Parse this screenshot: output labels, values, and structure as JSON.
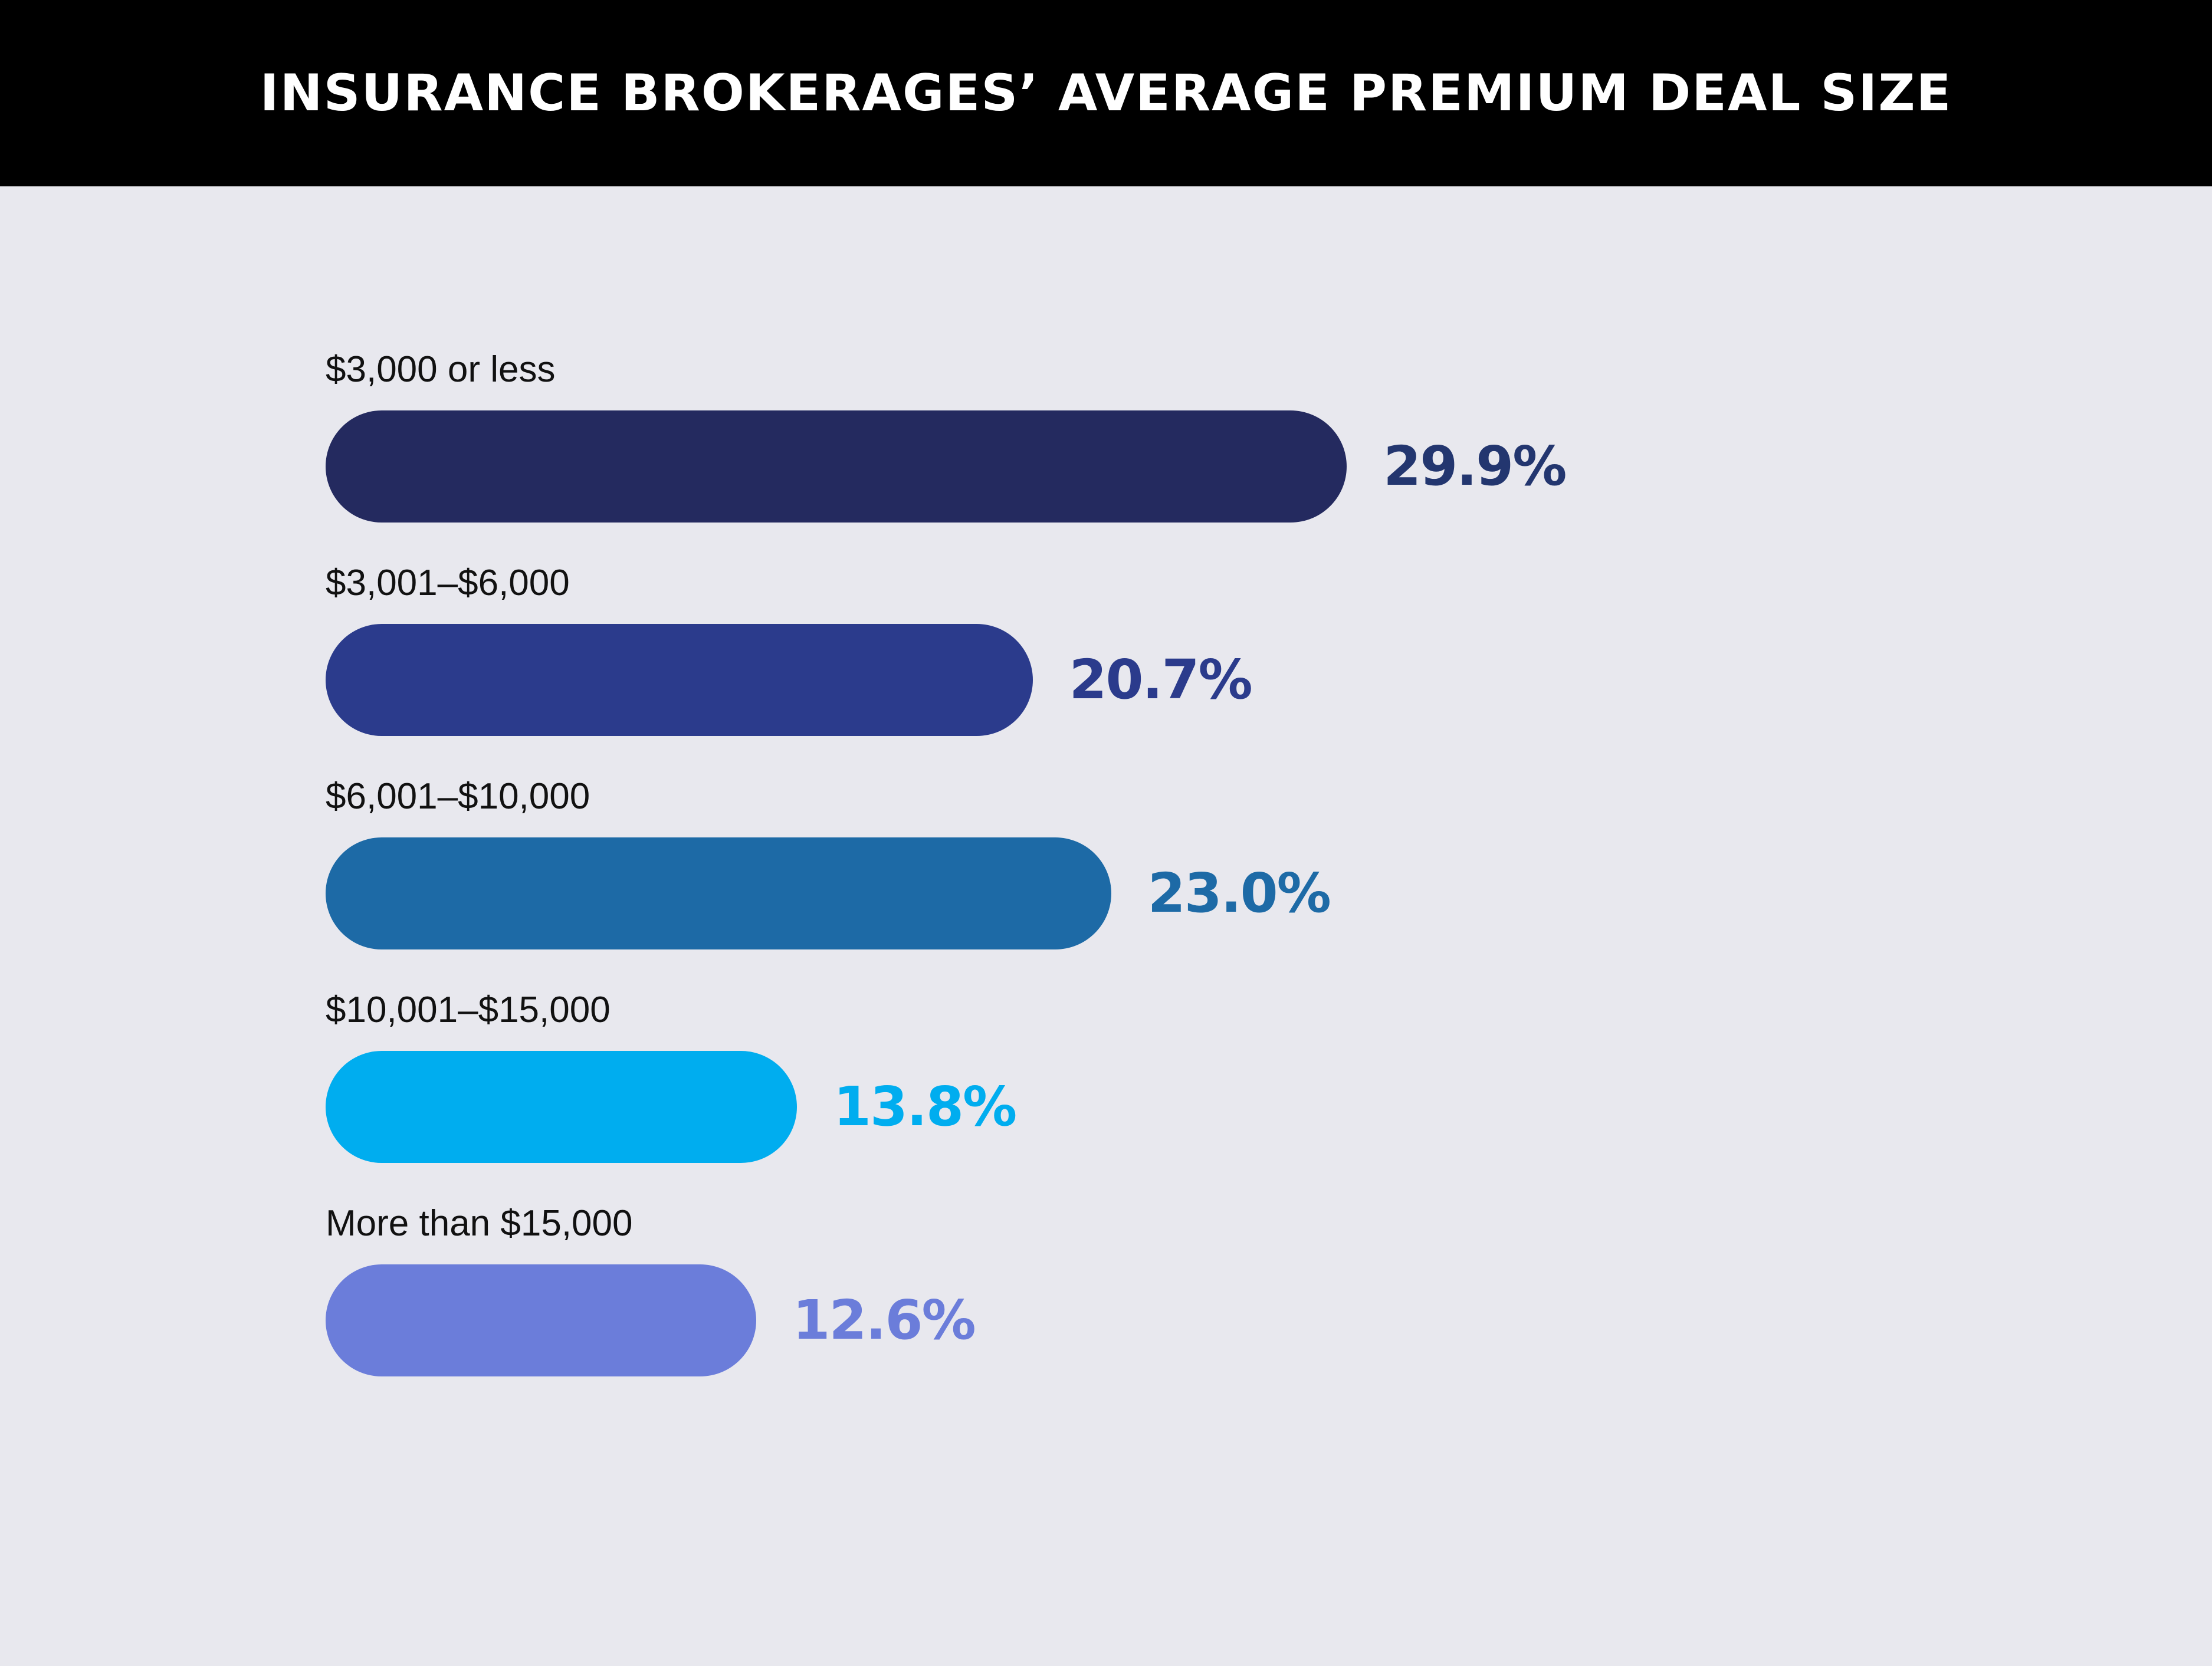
{
  "header": {
    "title": "INSURANCE BROKERAGES’ AVERAGE PREMIUM DEAL SIZE"
  },
  "colors": {
    "background": "#e8e8ee",
    "header_background": "#000000",
    "header_text": "#ffffff"
  },
  "chart_data": {
    "type": "bar",
    "orientation": "horizontal",
    "title": "INSURANCE BROKERAGES’ AVERAGE PREMIUM DEAL SIZE",
    "categories": [
      "$3,000 or less",
      "$3,001–$6,000",
      "$6,001–$10,000",
      "$10,001–$15,000",
      "More than $15,000"
    ],
    "values": [
      29.9,
      20.7,
      23.0,
      13.8,
      12.6
    ],
    "value_labels": [
      "29.9%",
      "20.7%",
      "23.0%",
      "13.8%",
      "12.6%"
    ],
    "bar_colors": [
      "#242a5f",
      "#2b3b8c",
      "#1d6aa6",
      "#00adef",
      "#6b7dda"
    ],
    "label_colors": [
      "#23366f",
      "#2b3b8c",
      "#1d6aa6",
      "#00adef",
      "#6b7dda"
    ],
    "unit": "%",
    "grid": false,
    "legend": "none"
  }
}
